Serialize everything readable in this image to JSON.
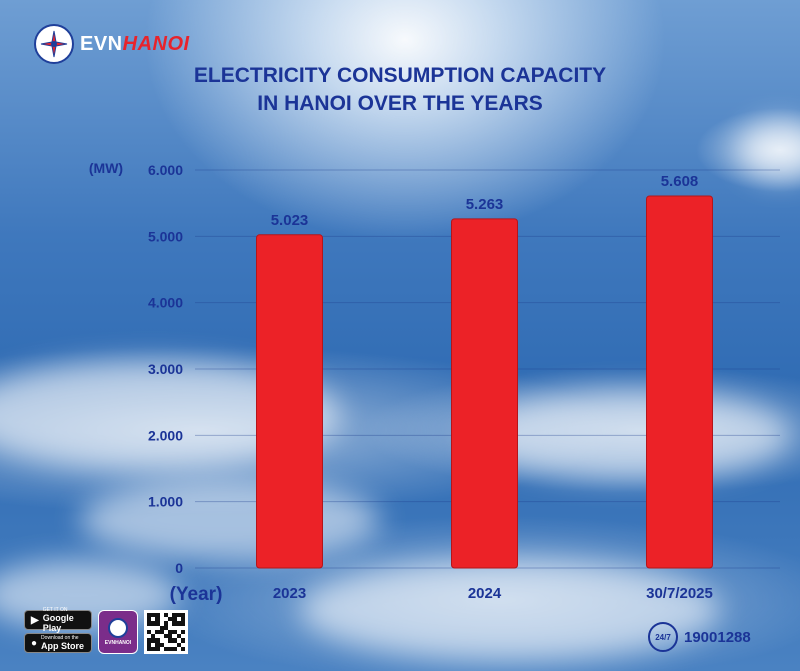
{
  "brand": {
    "name_part1": "EVN",
    "name_part2": "HANOI",
    "app_label": "EVNHANOI"
  },
  "title_line1": "ELECTRICITY CONSUMPTION CAPACITY",
  "title_line2": "IN HANOI OVER THE YEARS",
  "chart_data": {
    "type": "bar",
    "title": "ELECTRICITY CONSUMPTION CAPACITY IN HANOI OVER THE YEARS",
    "ylabel": "(MW)",
    "xlabel": "(Year)",
    "categories": [
      "2023",
      "2024",
      "30/7/2025"
    ],
    "values": [
      5023,
      5263,
      5608
    ],
    "value_labels": [
      "5.023",
      "5.263",
      "5.608"
    ],
    "ylim": [
      0,
      6000
    ],
    "yticks": [
      0,
      1000,
      2000,
      3000,
      4000,
      5000,
      6000
    ],
    "ytick_labels": [
      "0",
      "1.000",
      "2.000",
      "3.000",
      "4.000",
      "5.000",
      "6.000"
    ],
    "bar_color": "#ec2227",
    "grid": true
  },
  "footer": {
    "google_play_small": "GET IT ON",
    "google_play": "Google Play",
    "app_store_small": "Download on the",
    "app_store": "App Store",
    "hotline_badge": "24/7",
    "hotline": "19001288"
  }
}
